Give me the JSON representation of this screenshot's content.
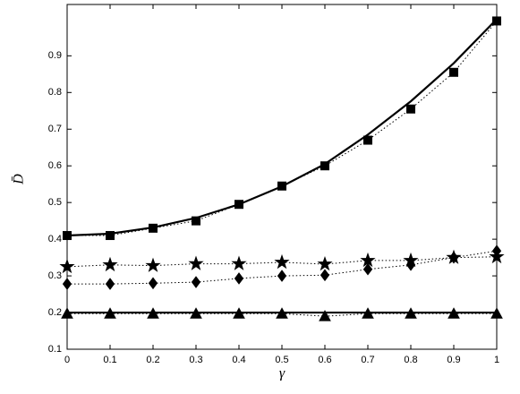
{
  "chart_data": {
    "type": "line",
    "x_label": "γ",
    "y_label": "D̄",
    "x": [
      0,
      0.1,
      0.2,
      0.3,
      0.4,
      0.5,
      0.6,
      0.7,
      0.8,
      0.9,
      1
    ],
    "xlim": [
      0,
      1
    ],
    "ylim": [
      0.1,
      1.04
    ],
    "xticks": [
      0,
      0.1,
      0.2,
      0.3,
      0.4,
      0.5,
      0.6,
      0.7,
      0.8,
      0.9,
      1
    ],
    "yticks": [
      0.1,
      0.2,
      0.3,
      0.4,
      0.5,
      0.6,
      0.7,
      0.8,
      0.9
    ],
    "series": [
      {
        "color": "#000000",
        "line": "solid",
        "marker": "none",
        "values": [
          0.41,
          0.415,
          0.432,
          0.458,
          0.495,
          0.544,
          0.605,
          0.685,
          0.776,
          0.88,
          1.0
        ]
      },
      {
        "color": "#000000",
        "line": "dotted",
        "marker": "square",
        "values": [
          0.41,
          0.41,
          0.43,
          0.45,
          0.495,
          0.545,
          0.6,
          0.67,
          0.755,
          0.855,
          0.995
        ]
      },
      {
        "color": "#000000",
        "line": "dotted",
        "marker": "star",
        "values": [
          0.325,
          0.33,
          0.328,
          0.333,
          0.333,
          0.337,
          0.332,
          0.342,
          0.342,
          0.35,
          0.352
        ]
      },
      {
        "color": "#000000",
        "line": "dotted",
        "marker": "diamond",
        "values": [
          0.278,
          0.278,
          0.28,
          0.283,
          0.293,
          0.3,
          0.302,
          0.318,
          0.33,
          0.35,
          0.368
        ]
      },
      {
        "color": "#000000",
        "line": "solid",
        "marker": "none",
        "values": [
          0.2,
          0.2,
          0.2,
          0.2,
          0.2,
          0.2,
          0.2,
          0.2,
          0.2,
          0.2,
          0.2
        ]
      },
      {
        "color": "#000000",
        "line": "dotted",
        "marker": "triangle",
        "values": [
          0.197,
          0.197,
          0.197,
          0.197,
          0.197,
          0.197,
          0.19,
          0.197,
          0.197,
          0.197,
          0.197
        ]
      }
    ]
  }
}
